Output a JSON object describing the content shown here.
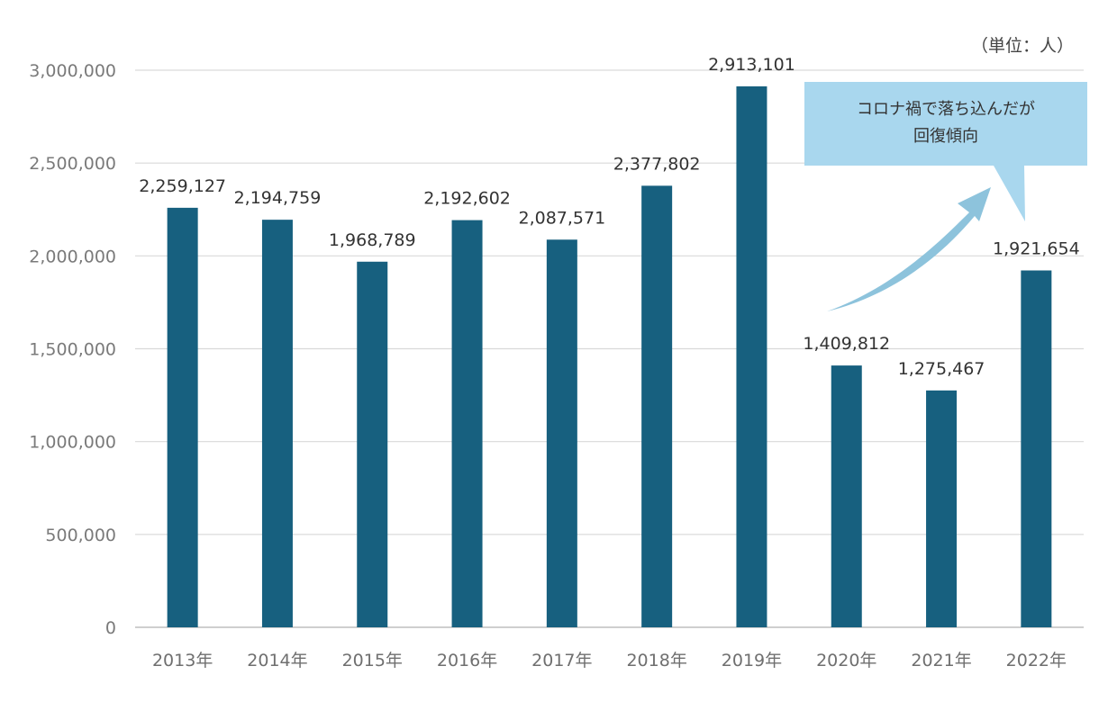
{
  "unit_label": "（単位：人）",
  "callout": {
    "line1": "コロナ禍で落ち込んだが",
    "line2": "回復傾向",
    "fill_color": "#a9d7ee",
    "arrow_color": "#8dc3dc"
  },
  "colors": {
    "bar": "#17607f",
    "grid": "#d9d9d9",
    "axis": "#bfbfbf"
  },
  "chart_data": {
    "type": "bar",
    "categories": [
      "2013年",
      "2014年",
      "2015年",
      "2016年",
      "2017年",
      "2018年",
      "2019年",
      "2020年",
      "2021年",
      "2022年"
    ],
    "values": [
      2259127,
      2194759,
      1968789,
      2192602,
      2087571,
      2377802,
      2913101,
      1409812,
      1275467,
      1921654
    ],
    "value_labels": [
      "2,259,127",
      "2,194,759",
      "1,968,789",
      "2,192,602",
      "2,087,571",
      "2,377,802",
      "2,913,101",
      "1,409,812",
      "1,275,467",
      "1,921,654"
    ],
    "ylim": [
      0,
      3000000
    ],
    "yticks": [
      0,
      500000,
      1000000,
      1500000,
      2000000,
      2500000,
      3000000
    ],
    "ytick_labels": [
      "0",
      "500,000",
      "1,000,000",
      "1,500,000",
      "2,000,000",
      "2,500,000",
      "3,000,000"
    ],
    "grid": true,
    "title": "",
    "xlabel": "",
    "ylabel": ""
  }
}
